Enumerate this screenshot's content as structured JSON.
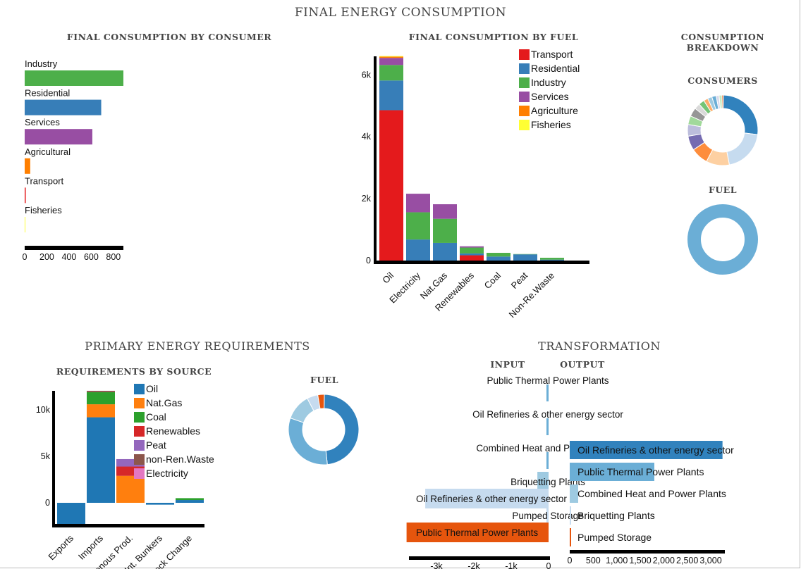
{
  "headings": {
    "final_energy": "FINAL ENERGY CONSUMPTION",
    "by_consumer": "FINAL CONSUMPTION BY CONSUMER",
    "by_fuel": "FINAL CONSUMPTION BY FUEL",
    "breakdown_line1": "CONSUMPTION",
    "breakdown_line2": "BREAKDOWN",
    "consumers": "CONSUMERS",
    "fuel_top": "FUEL",
    "primary": "PRIMARY ENERGY REQUIREMENTS",
    "by_source": "REQUIREMENTS BY SOURCE",
    "fuel_bottom": "FUEL",
    "transformation": "TRANSFORMATION",
    "input": "INPUT",
    "output": "OUTPUT"
  },
  "colors": {
    "Transport": "#e41a1c",
    "Residential": "#377eb8",
    "Industry": "#4daf4a",
    "Services": "#984ea3",
    "Agriculture": "#ff7f00",
    "Fisheries": "#ffff33",
    "Oil": "#1f77b4",
    "Nat.Gas": "#ff7f0e",
    "Coal": "#2ca02c",
    "Renewables": "#d62728",
    "Peat": "#9467bd",
    "non-Ren.Waste": "#8c564b",
    "Electricity": "#e377c2"
  },
  "chart_data": [
    {
      "id": "consumer",
      "type": "bar",
      "orientation": "horizontal",
      "categories": [
        "Industry",
        "Residential",
        "Services",
        "Agricultural",
        "Transport",
        "Fisheries"
      ],
      "values": [
        890,
        690,
        610,
        50,
        5,
        0
      ],
      "bar_colors": [
        "#4daf4a",
        "#377eb8",
        "#984ea3",
        "#ff7f00",
        "#e41a1c",
        "#ffff33"
      ],
      "xticks": [
        "0",
        "200",
        "400",
        "600",
        "800"
      ],
      "xlim": [
        0,
        890
      ]
    },
    {
      "id": "fuel",
      "type": "bar",
      "stacked": true,
      "categories": [
        "Oil",
        "Electricity",
        "Nat.Gas",
        "Renewables",
        "Coal",
        "Peat",
        "Non-Re.Waste"
      ],
      "series": [
        {
          "name": "Transport",
          "values": [
            4860,
            0,
            0,
            170,
            0,
            0,
            0
          ]
        },
        {
          "name": "Residential",
          "values": [
            960,
            680,
            570,
            60,
            130,
            200,
            30
          ]
        },
        {
          "name": "Industry",
          "values": [
            500,
            880,
            780,
            190,
            120,
            10,
            60
          ]
        },
        {
          "name": "Services",
          "values": [
            230,
            600,
            470,
            40,
            0,
            0,
            0
          ]
        },
        {
          "name": "Agriculture",
          "values": [
            40,
            0,
            0,
            0,
            0,
            0,
            0
          ]
        },
        {
          "name": "Fisheries",
          "values": [
            20,
            0,
            0,
            0,
            0,
            0,
            0
          ]
        }
      ],
      "yticks": [
        "0",
        "2k",
        "4k",
        "6k"
      ],
      "ylim": [
        0,
        6600
      ],
      "legend": "top-right"
    },
    {
      "id": "consumers-donut",
      "type": "pie",
      "donut": true,
      "values": [
        20,
        15,
        8,
        6,
        5,
        4,
        3,
        3,
        2,
        2,
        1.5,
        1.5,
        1.5,
        1,
        1,
        0.5
      ],
      "colors": [
        "#3182bd",
        "#c6dbef",
        "#fdd0a2",
        "#fd8d3c",
        "#756bb1",
        "#bcbddc",
        "#a1d99b",
        "#969696",
        "#d9d9d9",
        "#74c476",
        "#fdae6b",
        "#9ecae1",
        "#6baed6",
        "#dadaeb",
        "#c7e9c0",
        "#e6550d"
      ]
    },
    {
      "id": "fuel-donut",
      "type": "pie",
      "donut": true,
      "values": [
        100
      ],
      "colors": [
        "#6baed6"
      ]
    },
    {
      "id": "source",
      "type": "bar",
      "stacked": true,
      "categories": [
        "Exports",
        "Imports",
        "Indigenous Prod.",
        "Int. Bunkers",
        "Stock Change"
      ],
      "series": [
        {
          "name": "Oil",
          "values": [
            -2300,
            9200,
            0,
            -200,
            300
          ]
        },
        {
          "name": "Nat.Gas",
          "values": [
            0,
            1400,
            2900,
            0,
            0
          ]
        },
        {
          "name": "Coal",
          "values": [
            0,
            1300,
            0,
            0,
            200
          ]
        },
        {
          "name": "Renewables",
          "values": [
            0,
            0,
            1000,
            0,
            0
          ]
        },
        {
          "name": "Peat",
          "values": [
            -200,
            0,
            800,
            0,
            0
          ]
        },
        {
          "name": "non-Ren.Waste",
          "values": [
            0,
            150,
            0,
            0,
            0
          ]
        },
        {
          "name": "Electricity",
          "values": [
            0,
            0,
            0,
            0,
            0
          ]
        }
      ],
      "yticks": [
        "0",
        "5k",
        "10k"
      ],
      "ylim": [
        -2400,
        12000
      ],
      "legend": "top-right"
    },
    {
      "id": "source-donut",
      "type": "pie",
      "donut": true,
      "values": [
        48,
        32,
        12,
        5,
        3
      ],
      "colors": [
        "#3182bd",
        "#6baed6",
        "#9ecae1",
        "#c6dbef",
        "#e6550d"
      ]
    },
    {
      "id": "transform-input",
      "type": "bar",
      "orientation": "horizontal",
      "categories": [
        "Public Thermal Power Plants",
        "Oil Refineries & other energy sector",
        "Combined Heat and Power Plants",
        "Briquetting Plants",
        "Oil Refineries & other energy sector",
        "Pumped Storage",
        "Public Thermal Power Plants"
      ],
      "values": [
        -10,
        -40,
        -30,
        -300,
        -3300,
        -10,
        -3800
      ],
      "colors": [
        "#6baed6",
        "#6baed6",
        "#6baed6",
        "#9ecae1",
        "#c6dbef",
        "#c6dbef",
        "#e6550d"
      ],
      "xticks": [
        "-3k",
        "-2k",
        "-1k",
        "0"
      ]
    },
    {
      "id": "transform-output",
      "type": "bar",
      "orientation": "horizontal",
      "categories": [
        "Oil Refineries & other energy sector",
        "Public Thermal Power Plants",
        "Combined Heat and Power Plants",
        "Briquetting Plants",
        "Pumped Storage"
      ],
      "values": [
        3250,
        1800,
        180,
        10,
        5
      ],
      "colors": [
        "#3182bd",
        "#6baed6",
        "#9ecae1",
        "#c6dbef",
        "#e6550d"
      ],
      "xticks": [
        "0",
        "500",
        "1,000",
        "1,500",
        "2,000",
        "2,500",
        "3,000"
      ]
    }
  ]
}
